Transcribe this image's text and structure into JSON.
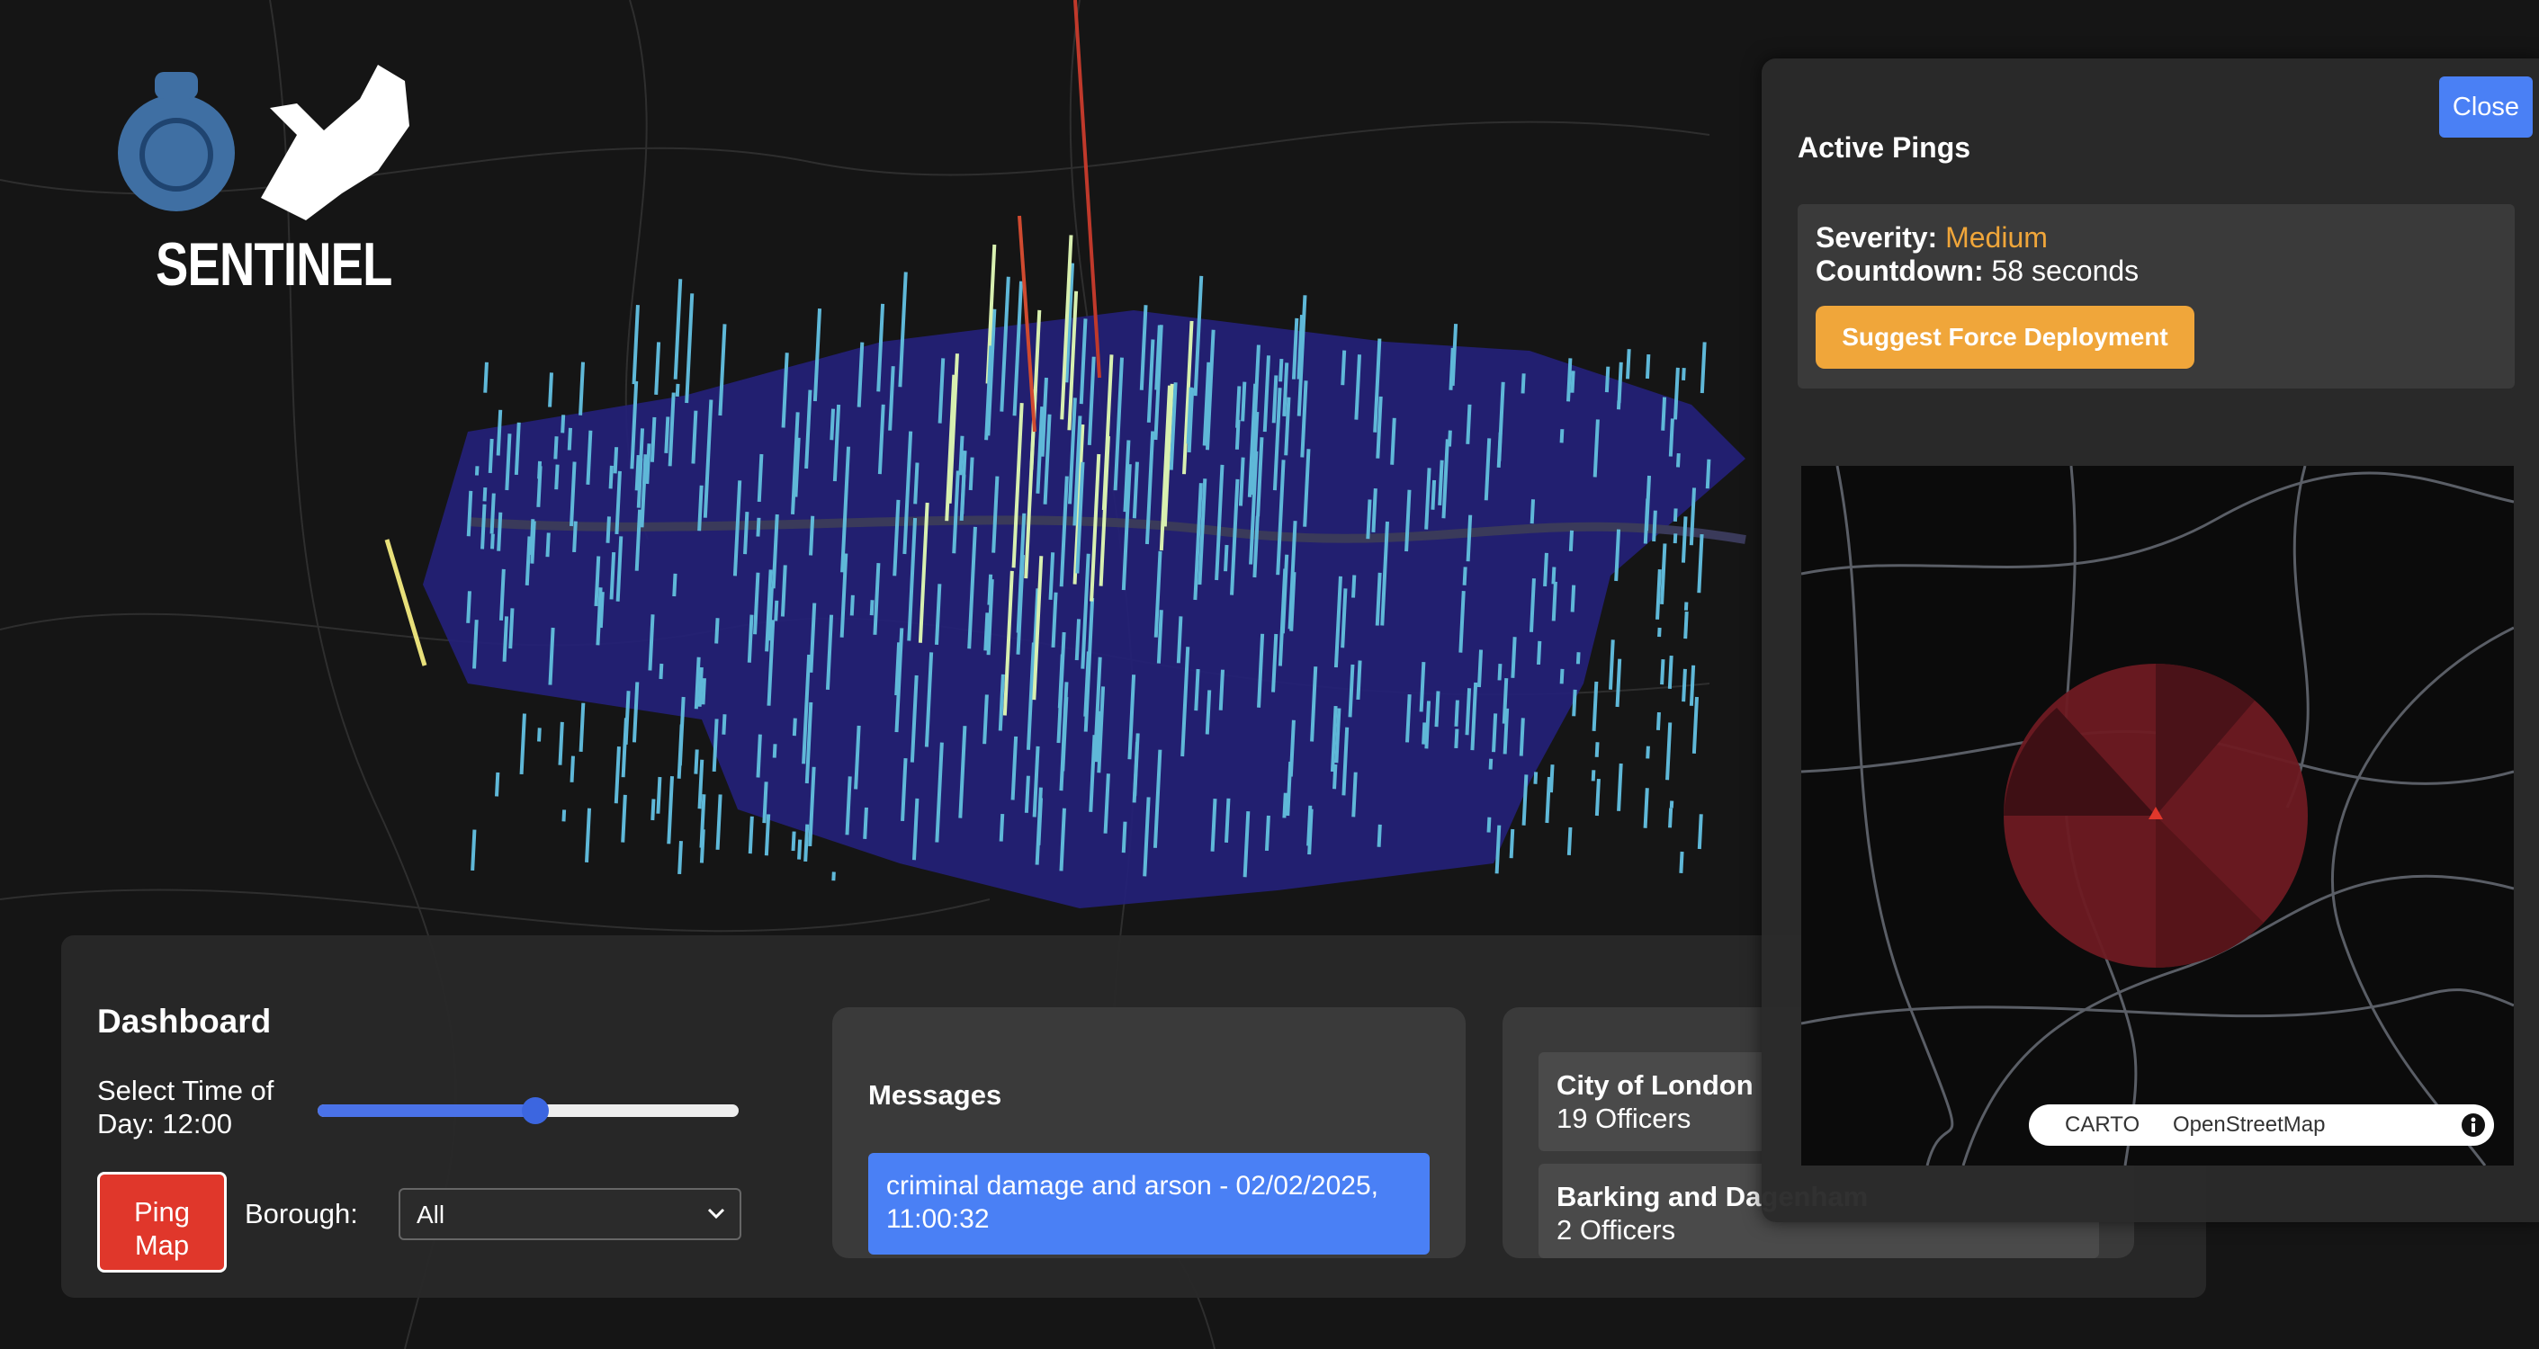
{
  "logo": {
    "title": "SENTINEL"
  },
  "dashboard": {
    "title": "Dashboard",
    "time_label": "Select Time of Day: 12:00",
    "ping_button": "Ping Map",
    "borough_label": "Borough:",
    "borough_select": "All"
  },
  "messages": {
    "title": "Messages",
    "items": [
      "criminal damage and arson - 02/02/2025, 11:00:32"
    ]
  },
  "officers": [
    {
      "borough": "City of London",
      "count": "19 Officers"
    },
    {
      "borough": "Barking and Dagenham",
      "count": "2 Officers"
    }
  ],
  "active_pings": {
    "close": "Close",
    "title": "Active Pings",
    "severity_label": "Severity:",
    "severity": "Medium",
    "countdown_label": "Countdown:",
    "countdown": "58 seconds",
    "action": "Suggest Force Deployment",
    "attribution": [
      "CARTO",
      "OpenStreetMap"
    ]
  }
}
